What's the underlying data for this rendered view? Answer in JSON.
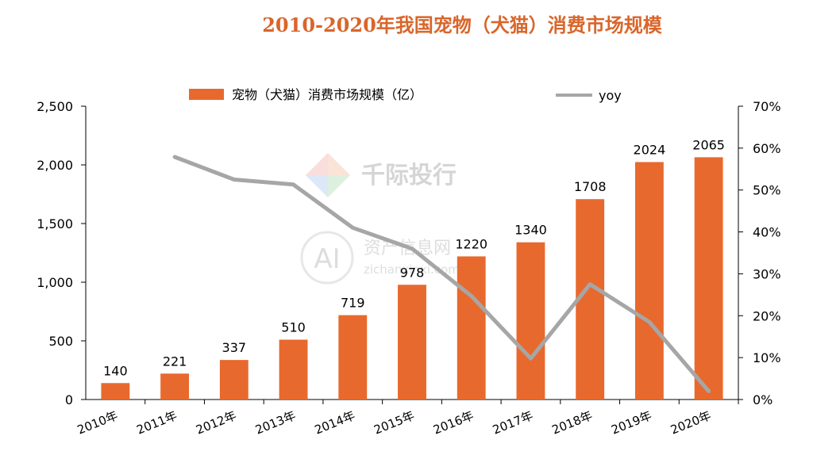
{
  "colors": {
    "bar": "#E8692D",
    "line": "#A6A6A6",
    "title": "#D9662B",
    "axis": "#000000"
  },
  "watermark": {
    "brand1": "千际投行",
    "brand2": "资产信息网",
    "brand2_url": "zichanxinxi.com",
    "logo_text": "AI"
  },
  "chart_data": {
    "type": "bar",
    "title": "2010-2020年我国宠物（犬猫）消费市场规模",
    "categories": [
      "2010年",
      "2011年",
      "2012年",
      "2013年",
      "2014年",
      "2015年",
      "2016年",
      "2017年",
      "2018年",
      "2019年",
      "2020年"
    ],
    "series": [
      {
        "name": "宠物（犬猫）消费市场规模（亿）",
        "type": "bar",
        "axis": "left",
        "values": [
          140,
          221,
          337,
          510,
          719,
          978,
          1220,
          1340,
          1708,
          2024,
          2065
        ],
        "labels": [
          "140",
          "221",
          "337",
          "510",
          "719",
          "978",
          "1220",
          "1340",
          "1708",
          "2024",
          "2065"
        ]
      },
      {
        "name": "yoy",
        "type": "line",
        "axis": "right",
        "values": [
          null,
          57.9,
          52.5,
          51.3,
          41.0,
          36.0,
          24.7,
          9.8,
          27.5,
          18.5,
          2.0
        ]
      }
    ],
    "ylim": [
      0,
      2500
    ],
    "yticks": [
      "0",
      "500",
      "1,000",
      "1,500",
      "2,000",
      "2,500"
    ],
    "y2lim": [
      0,
      70
    ],
    "y2ticks": [
      "0%",
      "10%",
      "20%",
      "30%",
      "40%",
      "50%",
      "60%",
      "70%"
    ],
    "legend": "top-center"
  }
}
